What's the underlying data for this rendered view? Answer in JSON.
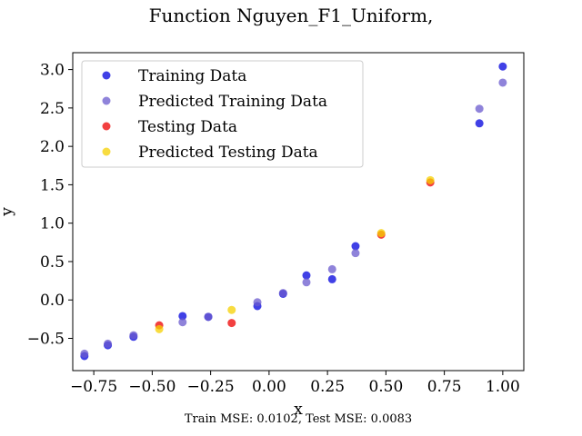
{
  "chart_data": {
    "type": "scatter",
    "title": "Function Nguyen_F1_Uniform,",
    "xlabel": "x",
    "ylabel": "y",
    "xlim": [
      -0.84,
      1.09
    ],
    "ylim": [
      -0.92,
      3.22
    ],
    "xticks": [
      -0.75,
      -0.5,
      -0.25,
      0.0,
      0.25,
      0.5,
      0.75,
      1.0
    ],
    "xtick_labels": [
      "−0.75",
      "−0.50",
      "−0.25",
      "0.00",
      "0.25",
      "0.50",
      "0.75",
      "1.00"
    ],
    "yticks": [
      -0.5,
      0.0,
      0.5,
      1.0,
      1.5,
      2.0,
      2.5,
      3.0
    ],
    "ytick_labels": [
      "−0.5",
      "0.0",
      "0.5",
      "1.0",
      "1.5",
      "2.0",
      "2.5",
      "3.0"
    ],
    "grid": false,
    "legend_position": "top-left",
    "footer": "Train MSE: 0.0102, Test MSE: 0.0083",
    "series": [
      {
        "name": "Training Data",
        "color": "#0000dd",
        "points": [
          [
            -0.79,
            -0.73
          ],
          [
            -0.69,
            -0.59
          ],
          [
            -0.58,
            -0.48
          ],
          [
            -0.37,
            -0.21
          ],
          [
            -0.26,
            -0.22
          ],
          [
            -0.05,
            -0.08
          ],
          [
            0.06,
            0.08
          ],
          [
            0.16,
            0.32
          ],
          [
            0.27,
            0.27
          ],
          [
            0.37,
            0.7
          ],
          [
            0.9,
            2.3
          ],
          [
            1.0,
            3.04
          ]
        ]
      },
      {
        "name": "Predicted Training Data",
        "color": "#6a5acd",
        "points": [
          [
            -0.79,
            -0.7
          ],
          [
            -0.69,
            -0.57
          ],
          [
            -0.58,
            -0.46
          ],
          [
            -0.37,
            -0.29
          ],
          [
            -0.26,
            -0.22
          ],
          [
            -0.05,
            -0.03
          ],
          [
            0.06,
            0.09
          ],
          [
            0.16,
            0.23
          ],
          [
            0.27,
            0.4
          ],
          [
            0.37,
            0.61
          ],
          [
            0.9,
            2.49
          ],
          [
            1.0,
            2.83
          ]
        ]
      },
      {
        "name": "Testing Data",
        "color": "#ee0000",
        "points": [
          [
            -0.47,
            -0.33
          ],
          [
            -0.16,
            -0.3
          ],
          [
            0.48,
            0.85
          ],
          [
            0.69,
            1.53
          ]
        ]
      },
      {
        "name": "Predicted Testing Data",
        "color": "#f5d000",
        "points": [
          [
            -0.47,
            -0.38
          ],
          [
            -0.16,
            -0.13
          ],
          [
            0.48,
            0.87
          ],
          [
            0.69,
            1.56
          ]
        ]
      }
    ]
  }
}
